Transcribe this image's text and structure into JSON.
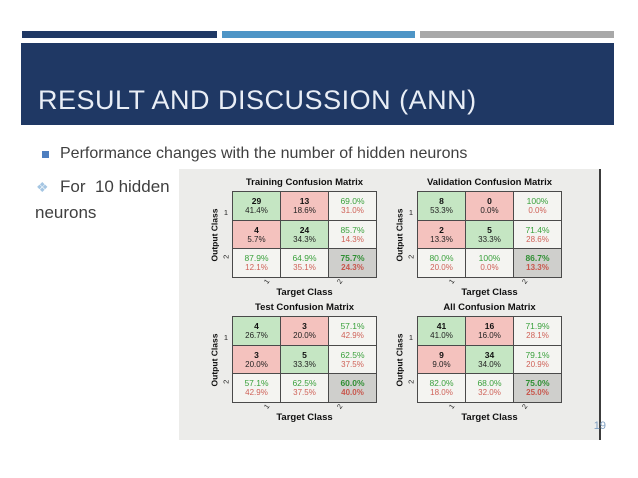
{
  "slide": {
    "title": "RESULT AND DISCUSSION (ANN)",
    "bullet1": "Performance changes with the number of hidden neurons",
    "bullet2_marker": "❖",
    "bullet2_line1": "For  10 hidden",
    "bullet2_line2": "neurons",
    "page_number": "19",
    "colors": {
      "navy": "#1f3864",
      "accent_blue": "#4e95c6",
      "accent_gray": "#a8a8a8",
      "cell_green": "#c5e6c3",
      "cell_pink": "#f4c2be",
      "cell_gray": "#cfcfcc",
      "pct_green": "#3aa13c",
      "pct_red": "#cf6258"
    }
  },
  "figure": {
    "ylabel": "Output Class",
    "xlabel": "Target Class",
    "yticks": [
      "1",
      "2"
    ],
    "xticks": [
      "1",
      "2"
    ]
  },
  "matrices": [
    {
      "title": "Training Confusion Matrix",
      "cells": [
        {
          "l1": "29",
          "l2": "41.4%"
        },
        {
          "l1": "13",
          "l2": "18.6%"
        },
        {
          "l1": "69.0%",
          "l2": "31.0%"
        },
        {
          "l1": "4",
          "l2": "5.7%"
        },
        {
          "l1": "24",
          "l2": "34.3%"
        },
        {
          "l1": "85.7%",
          "l2": "14.3%"
        },
        {
          "l1": "87.9%",
          "l2": "12.1%"
        },
        {
          "l1": "64.9%",
          "l2": "35.1%"
        },
        {
          "l1": "75.7%",
          "l2": "24.3%"
        }
      ]
    },
    {
      "title": "Validation Confusion Matrix",
      "cells": [
        {
          "l1": "8",
          "l2": "53.3%"
        },
        {
          "l1": "0",
          "l2": "0.0%"
        },
        {
          "l1": "100%",
          "l2": "0.0%"
        },
        {
          "l1": "2",
          "l2": "13.3%"
        },
        {
          "l1": "5",
          "l2": "33.3%"
        },
        {
          "l1": "71.4%",
          "l2": "28.6%"
        },
        {
          "l1": "80.0%",
          "l2": "20.0%"
        },
        {
          "l1": "100%",
          "l2": "0.0%"
        },
        {
          "l1": "86.7%",
          "l2": "13.3%"
        }
      ]
    },
    {
      "title": "Test Confusion Matrix",
      "cells": [
        {
          "l1": "4",
          "l2": "26.7%"
        },
        {
          "l1": "3",
          "l2": "20.0%"
        },
        {
          "l1": "57.1%",
          "l2": "42.9%"
        },
        {
          "l1": "3",
          "l2": "20.0%"
        },
        {
          "l1": "5",
          "l2": "33.3%"
        },
        {
          "l1": "62.5%",
          "l2": "37.5%"
        },
        {
          "l1": "57.1%",
          "l2": "42.9%"
        },
        {
          "l1": "62.5%",
          "l2": "37.5%"
        },
        {
          "l1": "60.0%",
          "l2": "40.0%"
        }
      ]
    },
    {
      "title": "All Confusion Matrix",
      "cells": [
        {
          "l1": "41",
          "l2": "41.0%"
        },
        {
          "l1": "16",
          "l2": "16.0%"
        },
        {
          "l1": "71.9%",
          "l2": "28.1%"
        },
        {
          "l1": "9",
          "l2": "9.0%"
        },
        {
          "l1": "34",
          "l2": "34.0%"
        },
        {
          "l1": "79.1%",
          "l2": "20.9%"
        },
        {
          "l1": "82.0%",
          "l2": "18.0%"
        },
        {
          "l1": "68.0%",
          "l2": "32.0%"
        },
        {
          "l1": "75.0%",
          "l2": "25.0%"
        }
      ]
    }
  ]
}
